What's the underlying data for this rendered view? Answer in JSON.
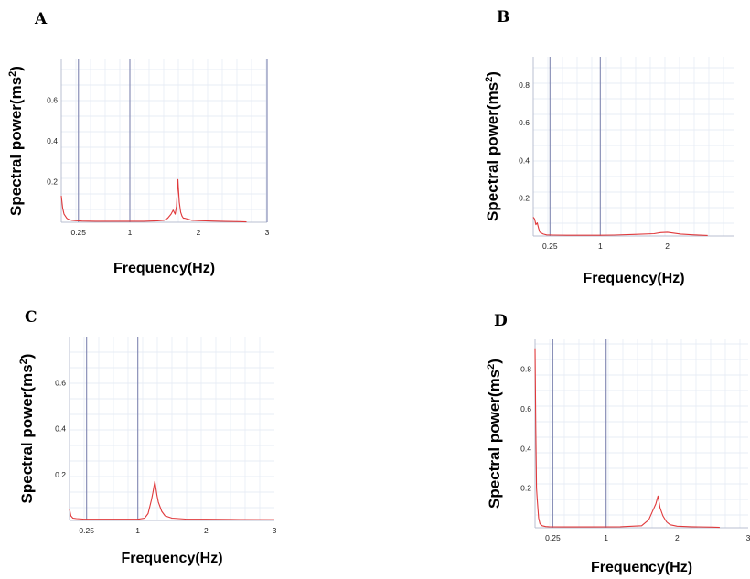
{
  "chart_data": [
    {
      "type": "line",
      "panel_label": "A",
      "xlabel": "Frequency(Hz)",
      "ylabel_main": "Spectral power(ms",
      "ylabel_sup": "2",
      "ylabel_close": ")",
      "xlim": [
        0,
        3
      ],
      "ylim": [
        0,
        0.8
      ],
      "x_ticks": [
        {
          "value": 0.25,
          "label": "0.25"
        },
        {
          "value": 1,
          "label": "1"
        },
        {
          "value": 2,
          "label": "2"
        },
        {
          "value": 3,
          "label": "3"
        }
      ],
      "y_ticks": [
        {
          "value": 0.2,
          "label": "0.2"
        },
        {
          "value": 0.4,
          "label": "0.4"
        },
        {
          "value": 0.6,
          "label": "0.6"
        }
      ],
      "vlines": [
        0.25,
        1,
        3
      ],
      "grid": true,
      "series": [
        {
          "color": "#e0393b",
          "x": [
            0,
            0.02,
            0.04,
            0.06,
            0.08,
            0.1,
            0.15,
            0.2,
            0.3,
            0.5,
            0.8,
            1.0,
            1.2,
            1.4,
            1.5,
            1.55,
            1.6,
            1.63,
            1.66,
            1.68,
            1.7,
            1.72,
            1.74,
            1.76,
            1.78,
            1.8,
            1.85,
            1.9,
            2.0,
            2.2,
            2.4,
            2.6,
            2.7
          ],
          "values": [
            0.13,
            0.07,
            0.04,
            0.03,
            0.02,
            0.015,
            0.01,
            0.008,
            0.006,
            0.005,
            0.005,
            0.005,
            0.005,
            0.007,
            0.01,
            0.02,
            0.04,
            0.06,
            0.04,
            0.08,
            0.21,
            0.1,
            0.05,
            0.03,
            0.02,
            0.02,
            0.015,
            0.01,
            0.008,
            0.006,
            0.004,
            0.003,
            0.002
          ]
        }
      ]
    },
    {
      "type": "line",
      "panel_label": "B",
      "xlabel": "Frequency(Hz)",
      "ylabel_main": "Spectral power(ms",
      "ylabel_sup": "2",
      "ylabel_close": ")",
      "xlim": [
        0,
        3
      ],
      "ylim": [
        0,
        0.95
      ],
      "x_ticks": [
        {
          "value": 0.25,
          "label": "0.25"
        },
        {
          "value": 1,
          "label": "1"
        },
        {
          "value": 2,
          "label": "2"
        }
      ],
      "y_ticks": [
        {
          "value": 0.2,
          "label": "0.2"
        },
        {
          "value": 0.4,
          "label": "0.4"
        },
        {
          "value": 0.6,
          "label": "0.6"
        },
        {
          "value": 0.8,
          "label": "0.8"
        }
      ],
      "vlines": [
        0.25,
        1
      ],
      "grid": true,
      "series": [
        {
          "color": "#e0393b",
          "x": [
            0,
            0.02,
            0.04,
            0.06,
            0.08,
            0.1,
            0.15,
            0.2,
            0.3,
            0.5,
            0.8,
            1.0,
            1.2,
            1.5,
            1.8,
            1.9,
            2.0,
            2.1,
            2.2,
            2.4,
            2.6
          ],
          "values": [
            0.1,
            0.09,
            0.06,
            0.07,
            0.04,
            0.02,
            0.01,
            0.006,
            0.005,
            0.004,
            0.004,
            0.004,
            0.005,
            0.008,
            0.012,
            0.018,
            0.02,
            0.015,
            0.01,
            0.006,
            0.003
          ]
        }
      ]
    },
    {
      "type": "line",
      "panel_label": "C",
      "xlabel": "Frequency(Hz)",
      "ylabel_main": "Spectral power(ms",
      "ylabel_sup": "2",
      "ylabel_close": ")",
      "xlim": [
        0,
        3
      ],
      "ylim": [
        0,
        0.8
      ],
      "x_ticks": [
        {
          "value": 0.25,
          "label": "0.25"
        },
        {
          "value": 1,
          "label": "1"
        },
        {
          "value": 2,
          "label": "2"
        },
        {
          "value": 3,
          "label": "3"
        }
      ],
      "y_ticks": [
        {
          "value": 0.2,
          "label": "0.2"
        },
        {
          "value": 0.4,
          "label": "0.4"
        },
        {
          "value": 0.6,
          "label": "0.6"
        }
      ],
      "vlines": [
        0.25,
        1
      ],
      "grid": true,
      "series": [
        {
          "color": "#e0393b",
          "x": [
            0,
            0.02,
            0.05,
            0.1,
            0.2,
            0.4,
            0.7,
            1.0,
            1.1,
            1.15,
            1.2,
            1.22,
            1.25,
            1.28,
            1.3,
            1.35,
            1.4,
            1.5,
            1.7,
            2.0,
            2.5,
            3.0
          ],
          "values": [
            0.05,
            0.02,
            0.01,
            0.008,
            0.006,
            0.005,
            0.005,
            0.005,
            0.01,
            0.03,
            0.09,
            0.12,
            0.17,
            0.11,
            0.08,
            0.04,
            0.02,
            0.01,
            0.006,
            0.005,
            0.004,
            0.003
          ]
        }
      ]
    },
    {
      "type": "line",
      "panel_label": "D",
      "xlabel": "Frequency(Hz)",
      "ylabel_main": "Spectral power(ms",
      "ylabel_sup": "2",
      "ylabel_close": ")",
      "xlim": [
        0,
        3
      ],
      "ylim": [
        0,
        0.95
      ],
      "x_ticks": [
        {
          "value": 0.25,
          "label": "0.25"
        },
        {
          "value": 1,
          "label": "1"
        },
        {
          "value": 2,
          "label": "2"
        },
        {
          "value": 3,
          "label": "3"
        }
      ],
      "y_ticks": [
        {
          "value": 0.2,
          "label": "0.2"
        },
        {
          "value": 0.4,
          "label": "0.4"
        },
        {
          "value": 0.6,
          "label": "0.6"
        },
        {
          "value": 0.8,
          "label": "0.8"
        }
      ],
      "vlines": [
        0.25,
        1
      ],
      "grid": true,
      "series": [
        {
          "color": "#e0393b",
          "x": [
            0,
            0.01,
            0.02,
            0.03,
            0.05,
            0.07,
            0.1,
            0.15,
            0.2,
            0.4,
            0.8,
            1.2,
            1.5,
            1.6,
            1.65,
            1.7,
            1.73,
            1.76,
            1.8,
            1.85,
            1.9,
            2.0,
            2.2,
            2.5,
            2.6
          ],
          "values": [
            0.9,
            0.5,
            0.2,
            0.15,
            0.05,
            0.02,
            0.01,
            0.006,
            0.005,
            0.004,
            0.004,
            0.005,
            0.01,
            0.04,
            0.08,
            0.12,
            0.16,
            0.1,
            0.06,
            0.03,
            0.015,
            0.008,
            0.005,
            0.003,
            0.002
          ]
        }
      ]
    }
  ]
}
